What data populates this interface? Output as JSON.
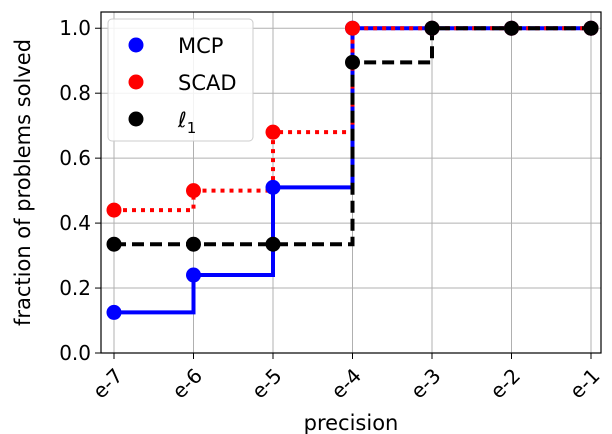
{
  "chart_data": {
    "type": "line",
    "step": "post",
    "title": "",
    "xlabel": "precision",
    "ylabel": "fraction of problems solved",
    "categories": [
      "e-7",
      "e-6",
      "e-5",
      "e-4",
      "e-3",
      "e-2",
      "e-1"
    ],
    "ylim": [
      0.0,
      1.05
    ],
    "yticks": [
      "0.0",
      "0.2",
      "0.4",
      "0.6",
      "0.8",
      "1.0"
    ],
    "grid": true,
    "legend_position": "top-left",
    "series": [
      {
        "name": "MCP",
        "color": "#0000ff",
        "linestyle": "solid",
        "values": [
          0.125,
          0.24,
          0.51,
          1.0,
          1.0,
          1.0,
          1.0
        ]
      },
      {
        "name": "SCAD",
        "color": "#ff0000",
        "linestyle": "dotted",
        "values": [
          0.44,
          0.5,
          0.68,
          1.0,
          1.0,
          1.0,
          1.0
        ]
      },
      {
        "name": "ℓ",
        "name_subscript": "1",
        "color": "#000000",
        "linestyle": "dashed",
        "values": [
          0.335,
          0.335,
          0.335,
          0.895,
          1.0,
          1.0,
          1.0
        ]
      }
    ]
  }
}
